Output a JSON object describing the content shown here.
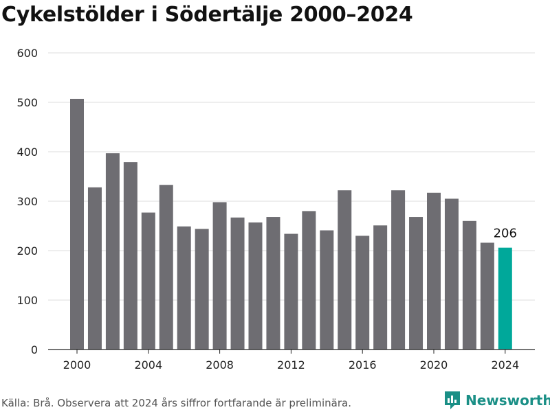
{
  "chart_data": {
    "type": "bar",
    "title": "Cykelstölder i Södertälje 2000–2024",
    "x": [
      2000,
      2001,
      2002,
      2003,
      2004,
      2005,
      2006,
      2007,
      2008,
      2009,
      2010,
      2011,
      2012,
      2013,
      2014,
      2015,
      2016,
      2017,
      2018,
      2019,
      2020,
      2021,
      2022,
      2023,
      2024
    ],
    "values": [
      507,
      328,
      397,
      379,
      277,
      333,
      249,
      244,
      298,
      267,
      257,
      268,
      234,
      280,
      241,
      322,
      230,
      251,
      322,
      268,
      317,
      305,
      260,
      216,
      206
    ],
    "xticks": [
      "2000",
      "2004",
      "2008",
      "2012",
      "2016",
      "2020",
      "2024"
    ],
    "yticks": [
      "0",
      "100",
      "200",
      "300",
      "400",
      "500",
      "600"
    ],
    "ylim": [
      0,
      600
    ],
    "grid": true,
    "colors": {
      "bar": "#6e6d72",
      "highlight": "#00a89a"
    },
    "highlight_year": 2024,
    "data_labels": [
      {
        "year": 2024,
        "text": "206"
      }
    ]
  },
  "footer": {
    "source": "Källa: Brå. Observera att 2024 års siffror fortfarande är preliminära.",
    "brand": "Newsworthy",
    "brand_icon": "newsworthy-logo-icon"
  }
}
